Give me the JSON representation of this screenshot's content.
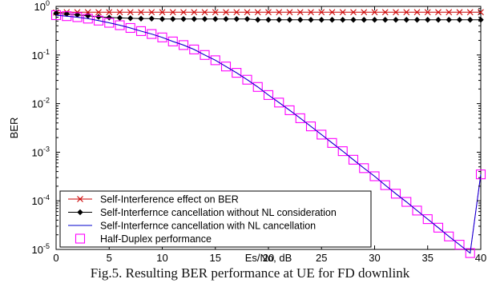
{
  "caption": "Fig.5. Resulting BER performance at UE for FD downlink",
  "chart_data": {
    "type": "line",
    "title": "",
    "xlabel": "Es/No, dB",
    "ylabel": "BER",
    "xlim": [
      0,
      40
    ],
    "ylim_exponents": [
      -5,
      0
    ],
    "yscale": "log",
    "x_ticks": [
      0,
      5,
      10,
      15,
      20,
      25,
      30,
      35,
      40
    ],
    "y_tick_labels": [
      {
        "base": "10",
        "exp": "0"
      },
      {
        "base": "10",
        "exp": "-1"
      },
      {
        "base": "10",
        "exp": "-2"
      },
      {
        "base": "10",
        "exp": "-3"
      },
      {
        "base": "10",
        "exp": "-4"
      },
      {
        "base": "10",
        "exp": "-5"
      }
    ],
    "grid": false,
    "legend_position": "bottom-left",
    "x": [
      0,
      1,
      2,
      3,
      4,
      5,
      6,
      7,
      8,
      9,
      10,
      11,
      12,
      13,
      14,
      15,
      16,
      17,
      18,
      19,
      20,
      21,
      22,
      23,
      24,
      25,
      26,
      27,
      28,
      29,
      30,
      31,
      32,
      33,
      34,
      35,
      36,
      37,
      38,
      39,
      40
    ],
    "series": [
      {
        "name": "Self-Interference effect on BER",
        "color": "#cc0000",
        "marker": "x",
        "values": [
          0.75,
          0.76,
          0.76,
          0.76,
          0.76,
          0.76,
          0.76,
          0.76,
          0.76,
          0.76,
          0.76,
          0.76,
          0.76,
          0.76,
          0.76,
          0.76,
          0.76,
          0.76,
          0.76,
          0.76,
          0.76,
          0.76,
          0.76,
          0.76,
          0.76,
          0.76,
          0.76,
          0.76,
          0.76,
          0.76,
          0.76,
          0.76,
          0.76,
          0.76,
          0.76,
          0.76,
          0.76,
          0.76,
          0.76,
          0.76,
          0.76
        ]
      },
      {
        "name": "Self-Interfernce  cancellation without NL consideration",
        "color": "#000000",
        "marker": "diamond",
        "values": [
          0.72,
          0.7,
          0.67,
          0.64,
          0.61,
          0.59,
          0.58,
          0.57,
          0.56,
          0.56,
          0.55,
          0.55,
          0.55,
          0.55,
          0.55,
          0.55,
          0.55,
          0.55,
          0.55,
          0.53,
          0.53,
          0.53,
          0.53,
          0.53,
          0.53,
          0.53,
          0.53,
          0.53,
          0.53,
          0.53,
          0.53,
          0.53,
          0.53,
          0.53,
          0.53,
          0.53,
          0.53,
          0.53,
          0.53,
          0.53,
          0.53
        ]
      },
      {
        "name": "Self-Interfernce cancellation with NL cancellation",
        "color": "#0000cc",
        "marker": "none",
        "values": [
          0.66,
          0.63,
          0.6,
          0.56,
          0.51,
          0.46,
          0.41,
          0.36,
          0.31,
          0.27,
          0.23,
          0.19,
          0.16,
          0.13,
          0.1,
          0.078,
          0.058,
          0.043,
          0.031,
          0.022,
          0.015,
          0.0105,
          0.0073,
          0.005,
          0.0034,
          0.0023,
          0.00155,
          0.00105,
          0.0007,
          0.00047,
          0.00032,
          0.00021,
          0.00014,
          9.5e-05,
          6.3e-05,
          4.2e-05,
          2.8e-05,
          1.85e-05,
          1.25e-05,
          8.4e-06,
          0.00035
        ]
      },
      {
        "name": "Half-Duplex performance",
        "color": "#ff00ff",
        "marker": "square",
        "values": [
          0.66,
          0.63,
          0.6,
          0.56,
          0.51,
          0.46,
          0.41,
          0.36,
          0.31,
          0.27,
          0.23,
          0.19,
          0.16,
          0.13,
          0.1,
          0.078,
          0.058,
          0.043,
          0.031,
          0.022,
          0.015,
          0.0105,
          0.0073,
          0.005,
          0.0034,
          0.0023,
          0.00155,
          0.00105,
          0.0007,
          0.00047,
          0.00032,
          0.00021,
          0.00014,
          9.5e-05,
          6.3e-05,
          4.2e-05,
          2.8e-05,
          1.85e-05,
          1.25e-05,
          8.4e-06,
          0.00035
        ]
      }
    ]
  }
}
